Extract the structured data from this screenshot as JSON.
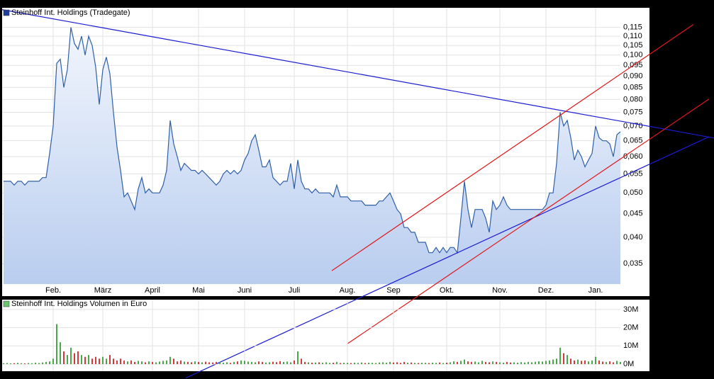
{
  "chart_data": [
    {
      "type": "area",
      "legend": "Steinhoff Int. Holdings (Tradegate)",
      "color": "#2f5fa8",
      "fill": "#c6d7f3",
      "legend_color": "#1f3fa0",
      "log_scale": true,
      "grid": true,
      "xlim": [
        0,
        174
      ],
      "ylim": [
        0.0316,
        0.119
      ],
      "xticks": [
        {
          "value": 14,
          "label": "Feb."
        },
        {
          "value": 28,
          "label": "März"
        },
        {
          "value": 42,
          "label": "April"
        },
        {
          "value": 55,
          "label": "Mai"
        },
        {
          "value": 68,
          "label": "Juni"
        },
        {
          "value": 82,
          "label": "Juli"
        },
        {
          "value": 97,
          "label": "Aug."
        },
        {
          "value": 110,
          "label": "Sep"
        },
        {
          "value": 125,
          "label": "Okt."
        },
        {
          "value": 140,
          "label": "Nov."
        },
        {
          "value": 153,
          "label": "Dez."
        },
        {
          "value": 167,
          "label": "Jan."
        }
      ],
      "yticks": [
        {
          "value": 0.035,
          "label": "0,035"
        },
        {
          "value": 0.04,
          "label": "0,040"
        },
        {
          "value": 0.045,
          "label": "0,045"
        },
        {
          "value": 0.05,
          "label": "0,050"
        },
        {
          "value": 0.055,
          "label": "0,055"
        },
        {
          "value": 0.06,
          "label": "0,060"
        },
        {
          "value": 0.065,
          "label": "0,065"
        },
        {
          "value": 0.07,
          "label": "0,070"
        },
        {
          "value": 0.075,
          "label": "0,075"
        },
        {
          "value": 0.08,
          "label": "0,080"
        },
        {
          "value": 0.085,
          "label": "0,085"
        },
        {
          "value": 0.09,
          "label": "0,090"
        },
        {
          "value": 0.095,
          "label": "0,095"
        },
        {
          "value": 0.1,
          "label": "0,100"
        },
        {
          "value": 0.105,
          "label": "0,105"
        },
        {
          "value": 0.11,
          "label": "0,110"
        },
        {
          "value": 0.115,
          "label": "0,115"
        }
      ],
      "values": [
        0.053,
        0.053,
        0.053,
        0.052,
        0.053,
        0.053,
        0.052,
        0.053,
        0.053,
        0.053,
        0.053,
        0.054,
        0.054,
        0.061,
        0.07,
        0.096,
        0.098,
        0.085,
        0.093,
        0.115,
        0.106,
        0.103,
        0.11,
        0.1,
        0.11,
        0.105,
        0.094,
        0.078,
        0.093,
        0.099,
        0.091,
        0.075,
        0.063,
        0.056,
        0.049,
        0.05,
        0.048,
        0.046,
        0.051,
        0.054,
        0.05,
        0.051,
        0.05,
        0.05,
        0.05,
        0.052,
        0.056,
        0.072,
        0.064,
        0.06,
        0.056,
        0.058,
        0.057,
        0.056,
        0.056,
        0.055,
        0.056,
        0.055,
        0.054,
        0.053,
        0.052,
        0.053,
        0.055,
        0.056,
        0.055,
        0.056,
        0.055,
        0.056,
        0.059,
        0.061,
        0.065,
        0.067,
        0.062,
        0.057,
        0.057,
        0.059,
        0.054,
        0.053,
        0.052,
        0.053,
        0.053,
        0.058,
        0.051,
        0.059,
        0.053,
        0.051,
        0.051,
        0.05,
        0.051,
        0.05,
        0.05,
        0.05,
        0.05,
        0.049,
        0.052,
        0.049,
        0.049,
        0.049,
        0.048,
        0.048,
        0.048,
        0.048,
        0.047,
        0.047,
        0.047,
        0.047,
        0.048,
        0.048,
        0.049,
        0.05,
        0.048,
        0.046,
        0.045,
        0.042,
        0.042,
        0.041,
        0.041,
        0.039,
        0.039,
        0.039,
        0.037,
        0.037,
        0.038,
        0.037,
        0.038,
        0.037,
        0.038,
        0.038,
        0.037,
        0.044,
        0.053,
        0.046,
        0.042,
        0.046,
        0.046,
        0.046,
        0.044,
        0.041,
        0.048,
        0.046,
        0.047,
        0.049,
        0.047,
        0.046,
        0.046,
        0.046,
        0.046,
        0.046,
        0.046,
        0.046,
        0.046,
        0.046,
        0.046,
        0.047,
        0.05,
        0.05,
        0.058,
        0.075,
        0.07,
        0.072,
        0.066,
        0.059,
        0.062,
        0.06,
        0.057,
        0.059,
        0.061,
        0.07,
        0.066,
        0.065,
        0.065,
        0.064,
        0.06,
        0.067,
        0.068
      ],
      "trendlines": [
        {
          "color": "#1a1ad0",
          "x": [
            -0.4,
            200.4
          ],
          "y": [
            0.1257,
            0.0659
          ]
        },
        {
          "color": "#1a1ad0",
          "x": [
            51.4,
            199
          ],
          "y": [
            0.0197,
            0.0663
          ]
        },
        {
          "color": "#e01818",
          "x": [
            92.6,
            194.6
          ],
          "y": [
            0.0338,
            0.1167
          ]
        },
        {
          "color": "#e01818",
          "x": [
            97,
            199
          ],
          "y": [
            0.0234,
            0.0802
          ]
        }
      ]
    },
    {
      "type": "bar",
      "legend": "Steinhoff Int. Holdings Volumen in Euro",
      "legend_color": "#6cc46c",
      "up_color": "#4aa84a",
      "down_color": "#d43a3a",
      "grid": true,
      "xlim": [
        0,
        174
      ],
      "ylim": [
        0,
        31.5
      ],
      "yticks": [
        {
          "value": 0,
          "label": "0M"
        },
        {
          "value": 10,
          "label": "10M"
        },
        {
          "value": 20,
          "label": "20M"
        },
        {
          "value": 30,
          "label": "30M"
        }
      ],
      "values": [
        0.5,
        0.6,
        0.4,
        0.5,
        0.7,
        0.5,
        0.4,
        0.6,
        0.5,
        0.8,
        0.6,
        0.9,
        1.2,
        1.5,
        3,
        22,
        12,
        7,
        5,
        9,
        6,
        7,
        5,
        4,
        5,
        3,
        4,
        3,
        4,
        3,
        5,
        3,
        2,
        3,
        2,
        1.5,
        2,
        1.2,
        1.8,
        1.5,
        1,
        1.5,
        1.2,
        1,
        1.4,
        1.8,
        2,
        4,
        3,
        1.5,
        2,
        1.4,
        1.2,
        1,
        1.5,
        1.2,
        1,
        1.3,
        1,
        0.9,
        1.2,
        1,
        0.8,
        1,
        0.7,
        1.2,
        1.5,
        2,
        1.8,
        1.4,
        1.2,
        1,
        1.5,
        1.2,
        0.9,
        1,
        1.3,
        1.1,
        1.6,
        1.2,
        1.4,
        1,
        2,
        7,
        3,
        1.2,
        1,
        0.8,
        0.9,
        1,
        0.8,
        1,
        0.7,
        0.8,
        1.2,
        0.6,
        0.8,
        0.7,
        0.6,
        0.8,
        0.7,
        0.9,
        0.6,
        0.8,
        0.7,
        0.6,
        0.9,
        1,
        0.8,
        1.2,
        0.9,
        1,
        0.7,
        1.2,
        0.8,
        0.9,
        0.7,
        0.6,
        0.8,
        0.7,
        0.6,
        0.8,
        0.7,
        0.9,
        0.6,
        0.8,
        1,
        1.5,
        1.2,
        1.8,
        2.5,
        1.5,
        1.2,
        1.4,
        1,
        1.8,
        1.2,
        1,
        1.5,
        1.2,
        1,
        0.8,
        1.2,
        0.9,
        1,
        0.8,
        1.1,
        0.9,
        1.2,
        1,
        1.3,
        1.6,
        1.4,
        1.8,
        2,
        2.5,
        3,
        9,
        6,
        5,
        3,
        2,
        2.5,
        1.8,
        2,
        1.5,
        2,
        4,
        2,
        1.4,
        1.2,
        1.5,
        1,
        1.8,
        1.2
      ]
    }
  ]
}
